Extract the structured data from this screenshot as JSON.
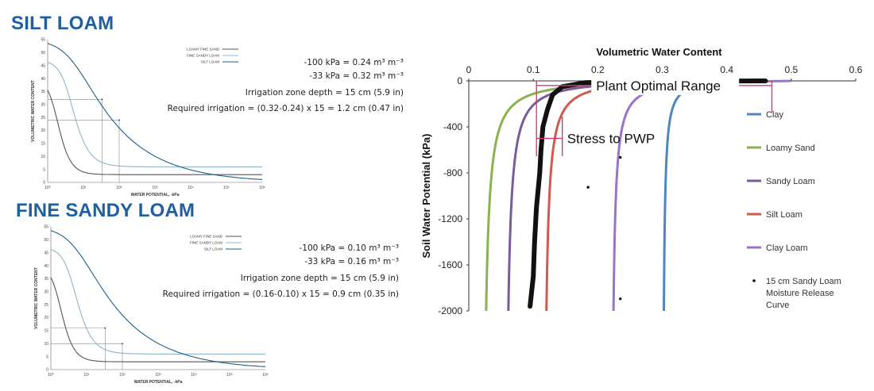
{
  "silt": {
    "title": "SILT LOAM",
    "eq1": "-100 kPa = 0.24 m³ m⁻³",
    "eq2": "-33 kPa = 0.32 m³ m⁻³",
    "eq3": "Irrigation zone depth = 15 cm (5.9 in)",
    "eq4": "Required irrigation = (0.32-0.24) x 15 = 1.2 cm (0.47 in)"
  },
  "fine": {
    "title": "FINE SANDY LOAM",
    "eq1": "-100 kPa = 0.10 m³ m⁻³",
    "eq2": "-33 kPa = 0.16 m³ m⁻³",
    "eq3": "Irrigation zone depth = 15 cm (5.9 in)",
    "eq4": "Required irrigation = (0.16-0.10) x 15 = 0.9 cm (0.35 in)"
  },
  "chart_data": [
    {
      "type": "line",
      "title": "SILT LOAM",
      "xlabel": "WATER POTENTIAL, -kPa",
      "ylabel": "VOLUMETRIC WATER CONTENT",
      "xscale": "log",
      "xlim": [
        1,
        1000000
      ],
      "ylim": [
        0,
        55
      ],
      "x_tick_labels": [
        "10⁰",
        "10¹",
        "10²",
        "10³",
        "10⁴",
        "10⁵",
        "10⁶"
      ],
      "y_tick_labels": [
        "0",
        "5",
        "10",
        "15",
        "20",
        "25",
        "30",
        "35",
        "40",
        "45",
        "50",
        "55"
      ],
      "legend_position": "top-right",
      "series": [
        {
          "name": "LOAMY FINE SAND",
          "color": "#555555",
          "theta_r": 3,
          "theta_s": 40,
          "alpha": 0.6,
          "n": 3.0
        },
        {
          "name": "FINE SANDY LOAM",
          "color": "#8fb3c9",
          "theta_r": 6,
          "theta_s": 47,
          "alpha": 0.25,
          "n": 2.5
        },
        {
          "name": "SILT LOAM",
          "color": "#1f5f8b",
          "theta_r": 0,
          "theta_s": 55,
          "alpha": 0.2,
          "n": 1.32
        }
      ],
      "guides": [
        {
          "x": 33,
          "y": 32
        },
        {
          "x": 100,
          "y": 24
        }
      ]
    },
    {
      "type": "line",
      "title": "FINE SANDY LOAM",
      "xlabel": "WATER POTENTIAL, -kPa",
      "ylabel": "VOLUMETRIC WATER CONTENT",
      "xscale": "log",
      "xlim": [
        1,
        1000000
      ],
      "ylim": [
        0,
        55
      ],
      "x_tick_labels": [
        "10⁰",
        "10¹",
        "10²",
        "10³",
        "10⁴",
        "10⁵",
        "10⁶"
      ],
      "y_tick_labels": [
        "0",
        "5",
        "10",
        "15",
        "20",
        "25",
        "30",
        "35",
        "40",
        "45",
        "50",
        "55"
      ],
      "legend_position": "top-right",
      "series": [
        {
          "name": "LOAMY FINE SAND",
          "color": "#555555",
          "theta_r": 3,
          "theta_s": 40,
          "alpha": 0.6,
          "n": 3.0
        },
        {
          "name": "FINE SANDY LOAM",
          "color": "#8fb3c9",
          "theta_r": 6,
          "theta_s": 47,
          "alpha": 0.25,
          "n": 2.5
        },
        {
          "name": "SILT LOAM",
          "color": "#1f5f8b",
          "theta_r": 0,
          "theta_s": 55,
          "alpha": 0.2,
          "n": 1.32
        }
      ],
      "guides": [
        {
          "x": 33,
          "y": 16
        },
        {
          "x": 100,
          "y": 10
        }
      ]
    },
    {
      "type": "line",
      "xlabel": "Volumetric Water Content",
      "ylabel": "Soil Water Potential (kPa)",
      "xlim": [
        0,
        0.6
      ],
      "ylim": [
        -2000,
        0
      ],
      "x_ticks": [
        0,
        0.1,
        0.2,
        0.3,
        0.4,
        0.5,
        0.6
      ],
      "y_ticks": [
        0,
        -400,
        -800,
        -1200,
        -1600,
        -2000
      ],
      "legend_position": "right",
      "series": [
        {
          "name": "Clay",
          "color": "#4e86bd",
          "theta_r": 0.3,
          "theta_s": 0.46,
          "k": 20
        },
        {
          "name": "Loamy Sand",
          "color": "#8ab34f",
          "theta_r": 0.02,
          "theta_s": 0.46,
          "k": 20
        },
        {
          "name": "Sandy Loam",
          "color": "#7a5b9c",
          "theta_r": 0.055,
          "theta_s": 0.46,
          "k": 20
        },
        {
          "name": "Silt Loam",
          "color": "#cf5a4e",
          "theta_r": 0.115,
          "theta_s": 0.46,
          "k": 20
        },
        {
          "name": "Clay Loam",
          "color": "#9a73c8",
          "theta_r": 0.22,
          "theta_s": 0.5,
          "k": 20
        }
      ],
      "measured": {
        "name": "15 cm Sandy Loam Moisture Release Curve",
        "color": "#111111",
        "points": [
          [
            0.095,
            -1960
          ],
          [
            0.1,
            -1700
          ],
          [
            0.102,
            -1400
          ],
          [
            0.105,
            -1100
          ],
          [
            0.11,
            -800
          ],
          [
            0.112,
            -600
          ],
          [
            0.115,
            -400
          ],
          [
            0.122,
            -250
          ],
          [
            0.13,
            -120
          ],
          [
            0.145,
            -50
          ],
          [
            0.18,
            -15
          ],
          [
            0.25,
            -5
          ],
          [
            0.35,
            -2
          ],
          [
            0.46,
            0
          ]
        ],
        "outliers": [
          [
            0.185,
            -925
          ],
          [
            0.235,
            -665
          ],
          [
            0.235,
            -1895
          ]
        ]
      },
      "annotations": [
        {
          "label": "Plant Optimal Range",
          "x_range": [
            0.105,
            0.47
          ]
        },
        {
          "label": "Stress to PWP",
          "x_range": [
            0.105,
            0.145
          ]
        }
      ]
    }
  ]
}
